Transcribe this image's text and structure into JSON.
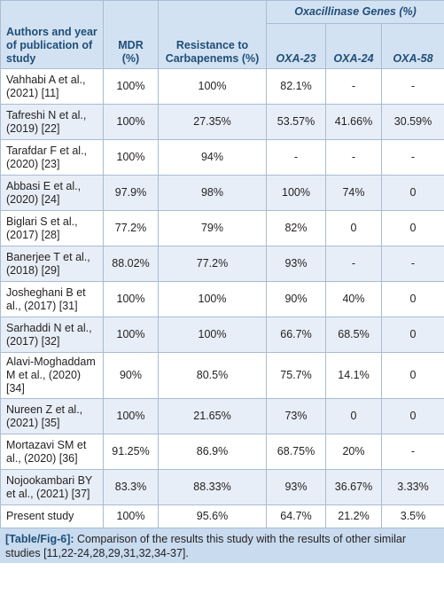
{
  "table": {
    "header": {
      "authors": "Authors and year of publication of study",
      "mdr": "MDR (%)",
      "carbapenems": "Resistance to Carbapenems (%)",
      "genes": "Oxacillinase Genes (%)",
      "oxa23": "OXA-23",
      "oxa24": "OXA-24",
      "oxa58": "OXA-58"
    },
    "rows": [
      [
        "Vahhabi A et al., (2021) [11]",
        "100%",
        "100%",
        "82.1%",
        "-",
        "-"
      ],
      [
        "Tafreshi N et al., (2019) [22]",
        "100%",
        "27.35%",
        "53.57%",
        "41.66%",
        "30.59%"
      ],
      [
        "Tarafdar F et al., (2020) [23]",
        "100%",
        "94%",
        "-",
        "-",
        "-"
      ],
      [
        "Abbasi E et al., (2020) [24]",
        "97.9%",
        "98%",
        "100%",
        "74%",
        "0"
      ],
      [
        "Biglari S et al., (2017) [28]",
        "77.2%",
        "79%",
        "82%",
        "0",
        "0"
      ],
      [
        "Banerjee T et al., (2018) [29]",
        "88.02%",
        "77.2%",
        "93%",
        "-",
        "-"
      ],
      [
        "Josheghani B et al., (2017) [31]",
        "100%",
        "100%",
        "90%",
        "40%",
        "0"
      ],
      [
        "Sarhaddi N et al., (2017) [32]",
        "100%",
        "100%",
        "66.7%",
        "68.5%",
        "0"
      ],
      [
        "Alavi-Moghaddam M et al., (2020) [34]",
        "90%",
        "80.5%",
        "75.7%",
        "14.1%",
        "0"
      ],
      [
        "Nureen Z et al., (2021) [35]",
        "100%",
        "21.65%",
        "73%",
        "0",
        "0"
      ],
      [
        "Mortazavi SM et al., (2020) [36]",
        "91.25%",
        "86.9%",
        "68.75%",
        "20%",
        "-"
      ],
      [
        "Nojookambari BY et al., (2021) [37]",
        "83.3%",
        "88.33%",
        "93%",
        "36.67%",
        "3.33%"
      ],
      [
        "Present study",
        "100%",
        "95.6%",
        "64.7%",
        "21.2%",
        "3.5%"
      ]
    ]
  },
  "caption": {
    "label": "[Table/Fig-6]:",
    "text": " Comparison of the results this study with the results of other similar studies [11,22-24,28,29,31,32,34-37]."
  }
}
